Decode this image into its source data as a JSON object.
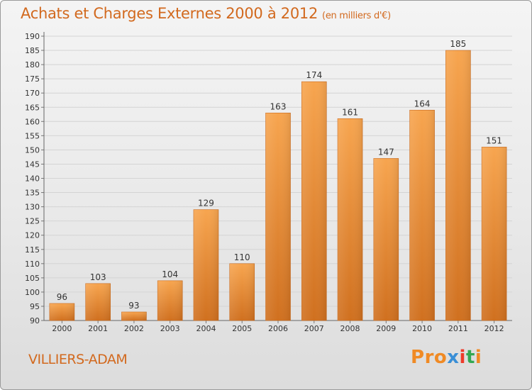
{
  "header": {
    "title": "Achats et Charges Externes 2000 à 2012",
    "subtitle": "(en milliers d'€)"
  },
  "footer": {
    "city": "VILLIERS-ADAM",
    "logo": "Proxiti"
  },
  "colors": {
    "accent": "#d2691e",
    "bar_top": "#f7a54f",
    "bar_bottom": "#d0701f",
    "logo_letters": [
      "#f08a24",
      "#f08a24",
      "#f08a24",
      "#3a8fd6",
      "#ee3b2a",
      "#33a852",
      "#f08a24"
    ]
  },
  "chart_data": {
    "type": "bar",
    "title": "Achats et Charges Externes 2000 à 2012",
    "subtitle": "(en milliers d'€)",
    "categories": [
      "2000",
      "2001",
      "2002",
      "2003",
      "2004",
      "2005",
      "2006",
      "2007",
      "2008",
      "2009",
      "2010",
      "2011",
      "2012"
    ],
    "values": [
      96,
      103,
      93,
      104,
      129,
      110,
      163,
      174,
      161,
      147,
      164,
      185,
      151
    ],
    "ylim": [
      90,
      190
    ],
    "yticks": [
      90,
      95,
      100,
      105,
      110,
      115,
      120,
      125,
      130,
      135,
      140,
      145,
      150,
      155,
      160,
      165,
      170,
      175,
      180,
      185,
      190
    ],
    "grid": true,
    "xlabel": "",
    "ylabel": ""
  }
}
